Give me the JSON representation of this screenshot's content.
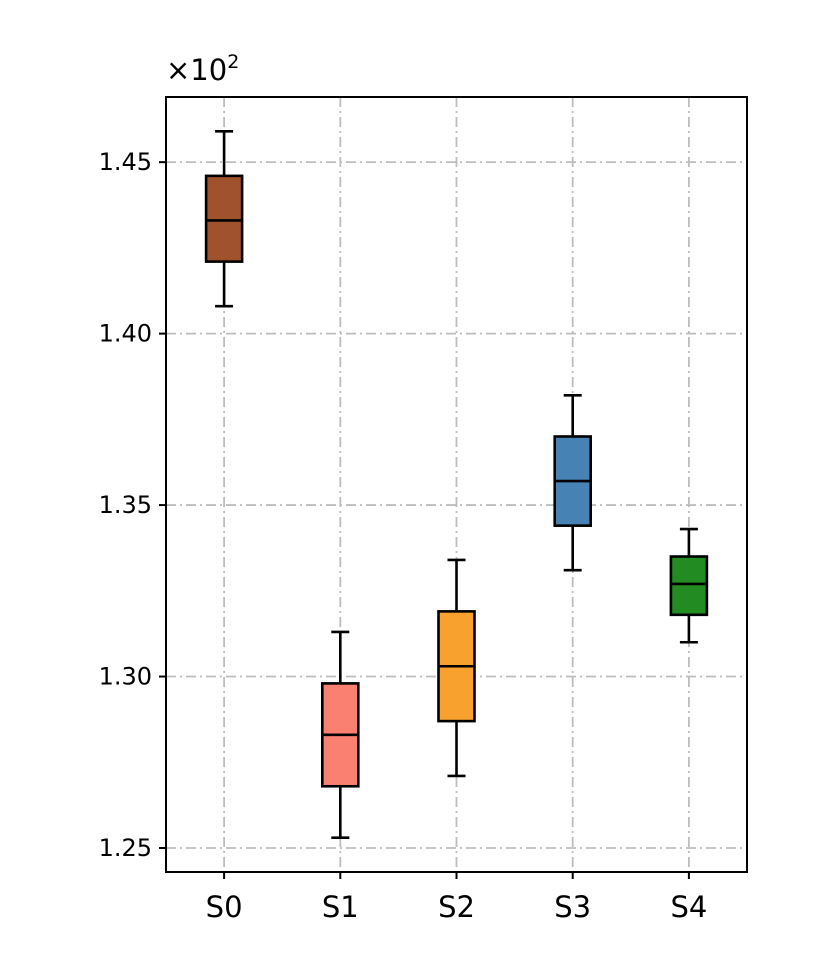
{
  "chart_data": {
    "type": "box",
    "multiplier": {
      "base": "×10",
      "exponent": "2"
    },
    "categories": [
      "S0",
      "S1",
      "S2",
      "S3",
      "S4"
    ],
    "scale": 100,
    "ylim": [
      1.243,
      1.469
    ],
    "yticks": [
      1.25,
      1.3,
      1.35,
      1.4,
      1.45
    ],
    "ytick_labels": [
      "1.25",
      "1.30",
      "1.35",
      "1.40",
      "1.45"
    ],
    "grid": true,
    "boxes": [
      {
        "name": "S0",
        "whisker_low": 1.408,
        "q1": 1.421,
        "median": 1.433,
        "q3": 1.446,
        "whisker_high": 1.459,
        "color": "#a0522d"
      },
      {
        "name": "S1",
        "whisker_low": 1.253,
        "q1": 1.268,
        "median": 1.283,
        "q3": 1.298,
        "whisker_high": 1.313,
        "color": "#fa8072"
      },
      {
        "name": "S2",
        "whisker_low": 1.271,
        "q1": 1.287,
        "median": 1.303,
        "q3": 1.319,
        "whisker_high": 1.334,
        "color": "#f9a12e"
      },
      {
        "name": "S3",
        "whisker_low": 1.331,
        "q1": 1.344,
        "median": 1.357,
        "q3": 1.37,
        "whisker_high": 1.382,
        "color": "#4682b4"
      },
      {
        "name": "S4",
        "whisker_low": 1.31,
        "q1": 1.318,
        "median": 1.327,
        "q3": 1.335,
        "whisker_high": 1.343,
        "color": "#228b22"
      }
    ]
  }
}
